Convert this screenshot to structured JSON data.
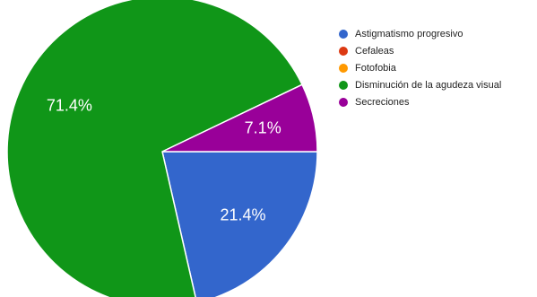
{
  "chart_data": {
    "type": "pie",
    "categories": [
      "Astigmatismo progresivo",
      "Cefaleas",
      "Fotofobia",
      "Disminución de la agudeza visual",
      "Secreciones"
    ],
    "values": [
      21.4,
      0,
      0,
      71.4,
      7.1
    ],
    "value_labels": [
      "21.4%",
      null,
      null,
      "71.4%",
      "7.1%"
    ],
    "colors": [
      "#3366cc",
      "#dc3912",
      "#ff9900",
      "#109618",
      "#990099"
    ],
    "legend": "right"
  }
}
